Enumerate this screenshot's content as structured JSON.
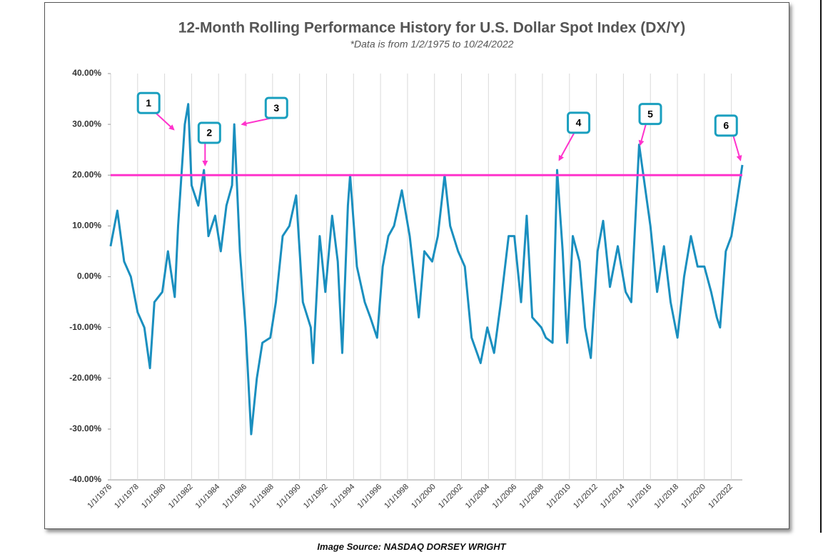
{
  "chart_data": {
    "type": "line",
    "title": "12-Month Rolling Performance History for U.S. Dollar Spot Index (DX/Y)",
    "subtitle": "*Data is from 1/2/1975 to 10/24/2022",
    "color": "#1a8fbf",
    "x": [
      "1976-01-01",
      "1976-07-01",
      "1977-01-01",
      "1977-07-01",
      "1978-01-01",
      "1978-07-01",
      "1978-12-01",
      "1979-04-01",
      "1979-11-01",
      "1980-04-01",
      "1980-10-01",
      "1981-01-01",
      "1981-07-01",
      "1981-10-01",
      "1982-01-01",
      "1982-07-01",
      "1982-12-01",
      "1983-04-01",
      "1983-10-01",
      "1984-03-01",
      "1984-08-01",
      "1985-01-01",
      "1985-03-01",
      "1985-08-01",
      "1986-01-01",
      "1986-06-01",
      "1986-11-01",
      "1987-04-01",
      "1987-11-01",
      "1988-04-01",
      "1988-10-01",
      "1989-04-01",
      "1989-10-01",
      "1990-04-01",
      "1990-11-01",
      "1991-01-01",
      "1991-07-01",
      "1991-12-01",
      "1992-06-01",
      "1992-11-01",
      "1993-03-01",
      "1993-08-01",
      "1993-10-01",
      "1994-04-01",
      "1994-11-01",
      "1995-04-01",
      "1995-10-01",
      "1996-03-01",
      "1996-08-01",
      "1997-01-01",
      "1997-08-01",
      "1998-03-01",
      "1998-11-01",
      "1999-04-01",
      "1999-11-01",
      "2000-04-01",
      "2000-10-01",
      "2001-03-01",
      "2001-10-01",
      "2002-04-01",
      "2002-10-01",
      "2003-06-01",
      "2003-12-01",
      "2004-06-01",
      "2004-12-01",
      "2005-07-01",
      "2005-12-01",
      "2006-06-01",
      "2006-11-01",
      "2007-04-01",
      "2007-12-01",
      "2008-04-01",
      "2008-10-01",
      "2009-02-01",
      "2009-07-01",
      "2009-11-01",
      "2010-04-01",
      "2010-10-01",
      "2011-03-01",
      "2011-08-01",
      "2012-02-01",
      "2012-07-01",
      "2013-01-01",
      "2013-08-01",
      "2014-03-01",
      "2014-08-01",
      "2015-03-01",
      "2015-08-01",
      "2016-01-01",
      "2016-07-01",
      "2017-01-01",
      "2017-07-01",
      "2018-01-01",
      "2018-07-01",
      "2019-01-01",
      "2019-07-01",
      "2020-01-01",
      "2020-07-01",
      "2020-12-01",
      "2021-03-01",
      "2021-08-01",
      "2022-01-01",
      "2022-06-01",
      "2022-10-24"
    ],
    "values": [
      6,
      13,
      3,
      0,
      -7,
      -10,
      -18,
      -5,
      -3,
      5,
      -4,
      10,
      30,
      34,
      18,
      14,
      21,
      8,
      12,
      5,
      14,
      18,
      30,
      5,
      -10,
      -31,
      -20,
      -13,
      -12,
      -5,
      8,
      10,
      16,
      -5,
      -10,
      -17,
      8,
      -3,
      12,
      3,
      -15,
      14,
      20,
      2,
      -5,
      -8,
      -12,
      2,
      8,
      10,
      17,
      8,
      -8,
      5,
      3,
      8,
      20,
      10,
      5,
      2,
      -12,
      -17,
      -10,
      -15,
      -5,
      8,
      8,
      -5,
      12,
      -8,
      -10,
      -12,
      -13,
      21,
      5,
      -13,
      8,
      3,
      -10,
      -16,
      5,
      11,
      -2,
      6,
      -3,
      -5,
      26,
      18,
      10,
      -3,
      6,
      -5,
      -12,
      0,
      8,
      2,
      2,
      -3,
      -8,
      -10,
      5,
      8,
      15,
      22
    ],
    "xlim": [
      "1976-01-02",
      "2022-10-24"
    ],
    "xticks": [
      {
        "value": "1976-01-01",
        "label": "1/1/1976"
      },
      {
        "value": "1978-01-01",
        "label": "1/1/1978"
      },
      {
        "value": "1980-01-01",
        "label": "1/1/1980"
      },
      {
        "value": "1982-01-01",
        "label": "1/1/1982"
      },
      {
        "value": "1984-01-01",
        "label": "1/1/1984"
      },
      {
        "value": "1986-01-01",
        "label": "1/1/1986"
      },
      {
        "value": "1988-01-01",
        "label": "1/1/1988"
      },
      {
        "value": "1990-01-01",
        "label": "1/1/1990"
      },
      {
        "value": "1992-01-01",
        "label": "1/1/1992"
      },
      {
        "value": "1994-01-01",
        "label": "1/1/1994"
      },
      {
        "value": "1996-01-01",
        "label": "1/1/1996"
      },
      {
        "value": "1998-01-01",
        "label": "1/1/1998"
      },
      {
        "value": "2000-01-01",
        "label": "1/1/2000"
      },
      {
        "value": "2002-01-01",
        "label": "1/1/2002"
      },
      {
        "value": "2004-01-01",
        "label": "1/1/2004"
      },
      {
        "value": "2006-01-01",
        "label": "1/1/2006"
      },
      {
        "value": "2008-01-01",
        "label": "1/1/2008"
      },
      {
        "value": "2010-01-01",
        "label": "1/1/2010"
      },
      {
        "value": "2012-01-01",
        "label": "1/1/2012"
      },
      {
        "value": "2014-01-01",
        "label": "1/1/2014"
      },
      {
        "value": "2016-01-01",
        "label": "1/1/2016"
      },
      {
        "value": "2018-01-01",
        "label": "1/1/2018"
      },
      {
        "value": "2020-01-01",
        "label": "1/1/2020"
      },
      {
        "value": "2022-01-01",
        "label": "1/1/2022"
      }
    ],
    "ylim": [
      -40,
      40
    ],
    "yticks": [
      {
        "value": -40,
        "label": "-40.00%"
      },
      {
        "value": -30,
        "label": "-30.00%"
      },
      {
        "value": -20,
        "label": "-20.00%"
      },
      {
        "value": -10,
        "label": "-10.00%"
      },
      {
        "value": 0,
        "label": "0.00%"
      },
      {
        "value": 10,
        "label": "10.00%"
      },
      {
        "value": 20,
        "label": "20.00%"
      },
      {
        "value": 30,
        "label": "30.00%"
      },
      {
        "value": 40,
        "label": "40.00%"
      }
    ],
    "grid": "x",
    "reference_line": {
      "value": 20,
      "color": "#ff33cc"
    },
    "annotations": [
      {
        "label": "1",
        "x": "1980-09-01",
        "y": 29
      },
      {
        "label": "2",
        "x": "1983-01-01",
        "y": 22
      },
      {
        "label": "3",
        "x": "1985-10-01",
        "y": 30
      },
      {
        "label": "4",
        "x": "2009-04-01",
        "y": 23
      },
      {
        "label": "5",
        "x": "2015-04-01",
        "y": 26
      },
      {
        "label": "6",
        "x": "2022-09-01",
        "y": 23
      }
    ]
  },
  "caption": "Image Source: NASDAQ DORSEY WRIGHT"
}
